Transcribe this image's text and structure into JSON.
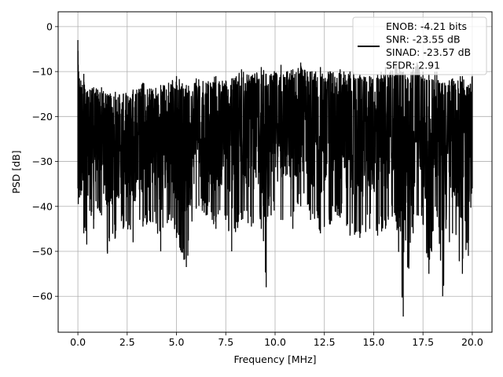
{
  "chart_data": {
    "type": "line",
    "title": "",
    "xlabel": "Frequency [MHz]",
    "ylabel": "PSD [dB]",
    "xlim": [
      -1.0,
      21.0
    ],
    "ylim": [
      -68.0,
      3.3
    ],
    "x_ticks": [
      0.0,
      2.5,
      5.0,
      7.5,
      10.0,
      12.5,
      15.0,
      17.5,
      20.0
    ],
    "x_tick_labels": [
      "0.0",
      "2.5",
      "5.0",
      "7.5",
      "10.0",
      "12.5",
      "15.0",
      "17.5",
      "20.0"
    ],
    "y_ticks": [
      0,
      -10,
      -20,
      -30,
      -40,
      -50,
      -60
    ],
    "y_tick_labels": [
      "0",
      "−10",
      "−20",
      "−30",
      "−40",
      "−50",
      "−60"
    ],
    "grid": true,
    "legend_position": "top-right",
    "legend_lines": [
      "ENOB: -4.21 bits",
      "SNR: -23.55 dB",
      "SINAD: -23.57 dB",
      "SFDR: 2.91"
    ],
    "series": [
      {
        "color": "#000000",
        "x": [
          0.0,
          0.02,
          0.04,
          0.08,
          0.15,
          0.2,
          0.3,
          0.45,
          0.6,
          0.8,
          1.0,
          1.2,
          1.5,
          1.9,
          2.3,
          2.8,
          3.3,
          3.8,
          4.2,
          4.6,
          5.0,
          5.5,
          6.0,
          6.5,
          7.0,
          7.5,
          7.8,
          8.3,
          8.8,
          9.3,
          9.55,
          9.8,
          10.3,
          10.9,
          11.3,
          11.8,
          12.3,
          12.8,
          13.3,
          13.8,
          14.3,
          14.8,
          15.2,
          15.6,
          16.1,
          16.5,
          17.0,
          17.2,
          17.5,
          17.8,
          18.2,
          18.5,
          19.0,
          19.5,
          19.8,
          20.0
        ],
        "upper": [
          -3.0,
          -8.5,
          -10.0,
          -11.5,
          -12.0,
          -13.5,
          -10.5,
          -14.5,
          -14.0,
          -13.5,
          -14.0,
          -13.5,
          -15.0,
          -14.5,
          -15.0,
          -14.0,
          -12.5,
          -14.0,
          -13.0,
          -12.5,
          -11.0,
          -13.0,
          -11.5,
          -12.5,
          -11.0,
          -12.0,
          -11.5,
          -9.5,
          -11.0,
          -9.0,
          -10.5,
          -10.5,
          -8.5,
          -9.5,
          -8.0,
          -10.0,
          -9.0,
          -10.0,
          -9.5,
          -10.0,
          -10.5,
          -11.0,
          -10.5,
          -9.0,
          -8.5,
          -10.0,
          -9.5,
          -8.0,
          -10.0,
          -10.5,
          -10.0,
          -12.5,
          -11.5,
          -11.0,
          -13.0,
          -11.0
        ],
        "lower": [
          -36.0,
          -39.5,
          -38.0,
          -38.0,
          -37.5,
          -36.5,
          -46.0,
          -48.5,
          -41.0,
          -45.0,
          -40.5,
          -42.0,
          -50.5,
          -47.0,
          -45.0,
          -48.0,
          -44.5,
          -43.5,
          -50.0,
          -43.0,
          -47.0,
          -53.5,
          -40.5,
          -42.0,
          -45.0,
          -43.0,
          -50.0,
          -43.0,
          -44.5,
          -45.0,
          -58.0,
          -42.0,
          -43.0,
          -45.0,
          -40.0,
          -43.0,
          -46.0,
          -44.0,
          -42.5,
          -46.5,
          -47.0,
          -45.0,
          -46.5,
          -45.0,
          -42.0,
          -64.5,
          -46.0,
          -42.0,
          -44.0,
          -55.0,
          -41.0,
          -60.0,
          -46.0,
          -55.0,
          -51.0,
          -36.0
        ]
      }
    ]
  }
}
